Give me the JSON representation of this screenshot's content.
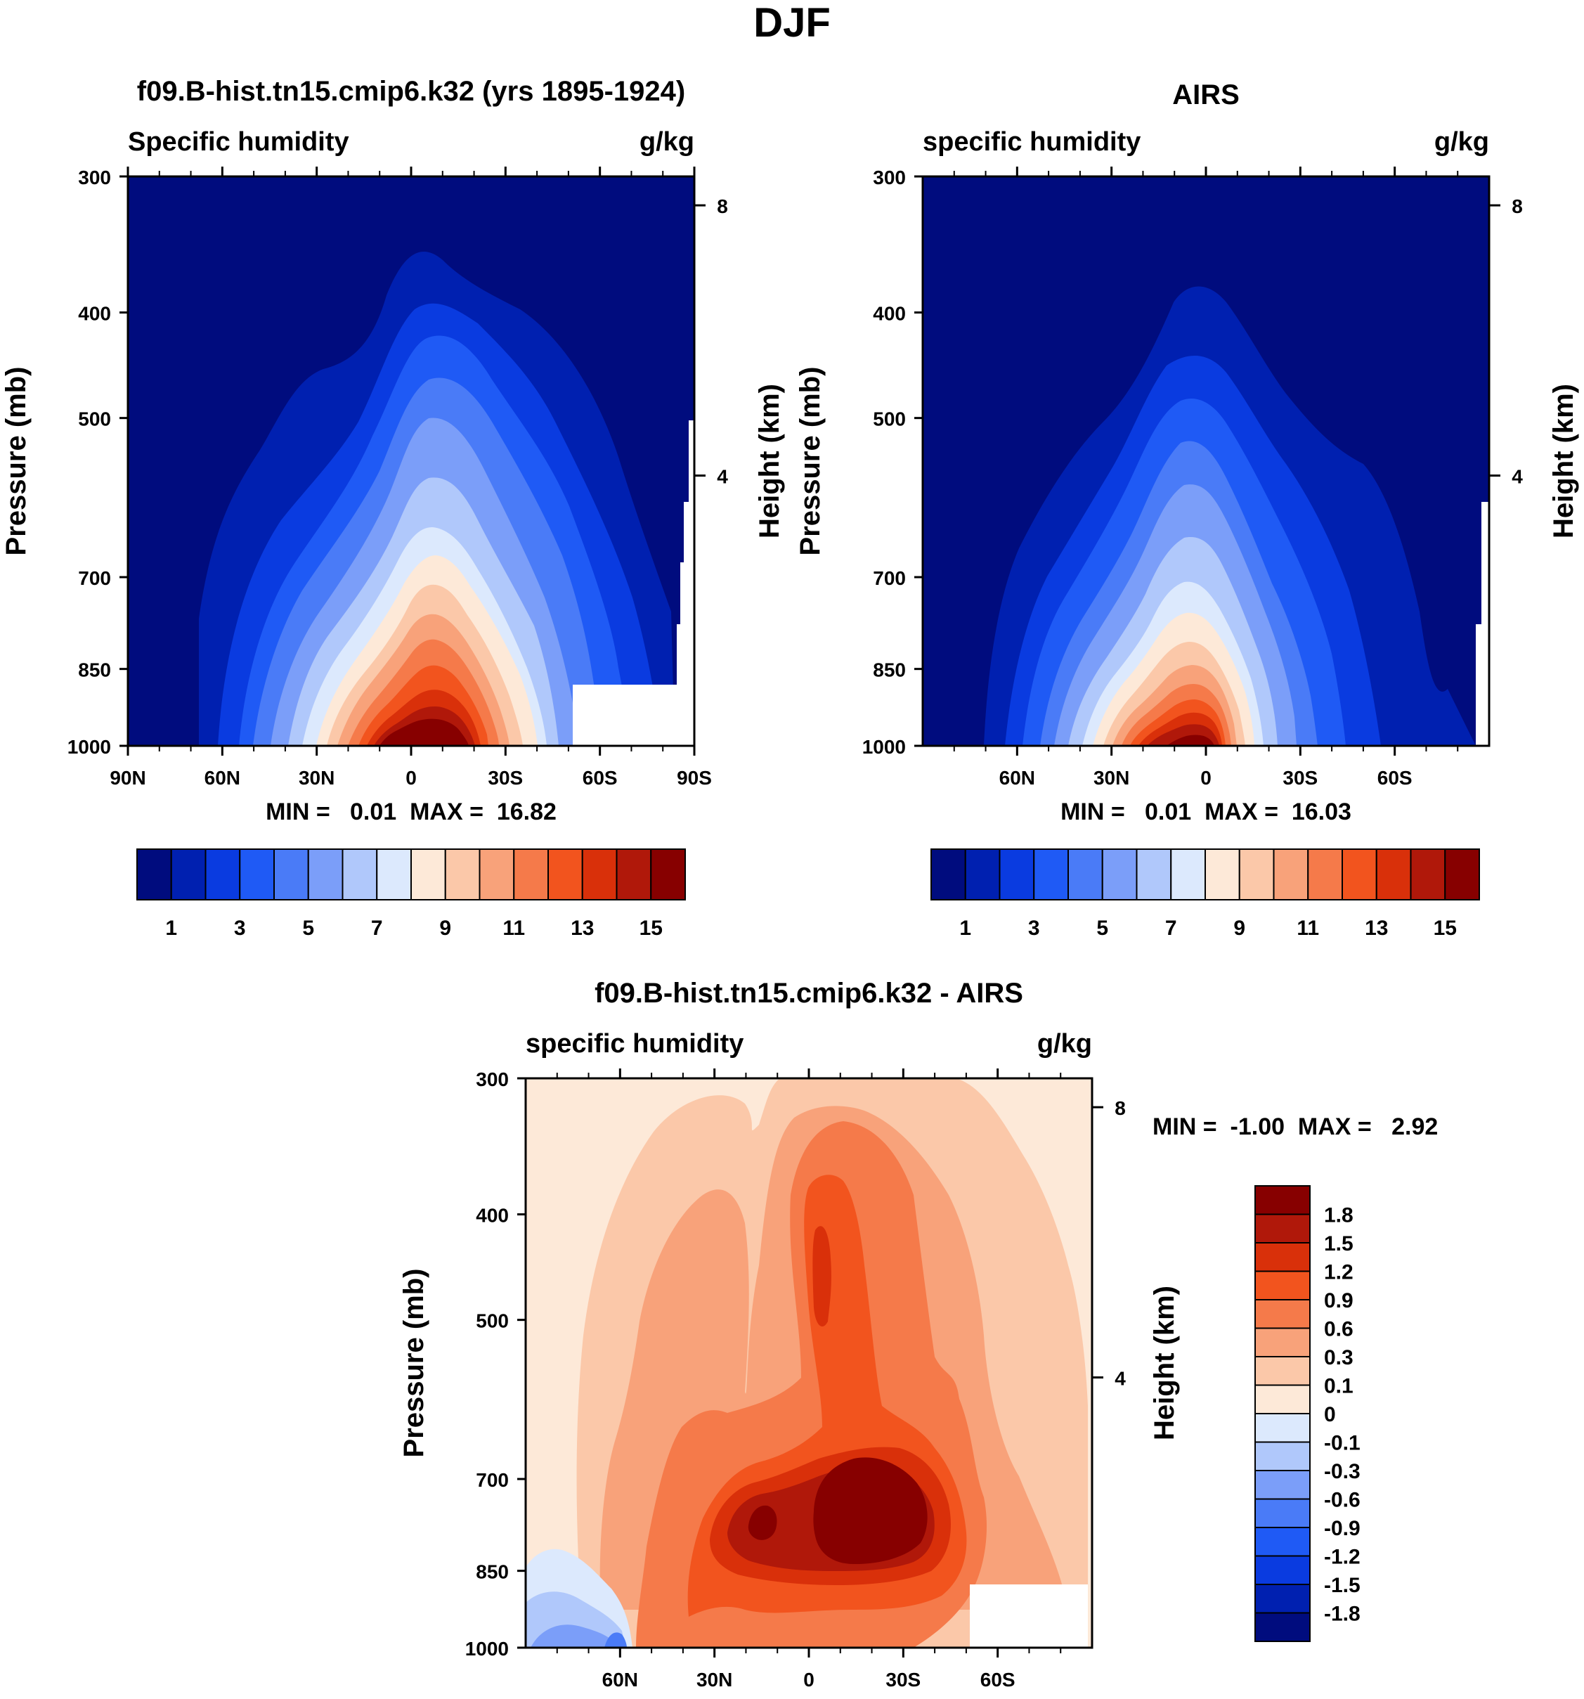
{
  "page_title": "DJF",
  "chart_data": [
    {
      "type": "heatmap",
      "id": "model",
      "title": "f09.B-hist.tn15.cmip6.k32 (yrs 1895-1924)",
      "left_label": "Specific humidity",
      "right_label": "g/kg",
      "ylabel": "Pressure (mb)",
      "ylabel_right": "Height (km)",
      "x_ticks": [
        "90N",
        "60N",
        "30N",
        "0",
        "30S",
        "60S",
        "90S"
      ],
      "xlim": [
        90,
        -90
      ],
      "y_ticks": [
        "300",
        "400",
        "500",
        "700",
        "850",
        "1000"
      ],
      "y_tick_values": [
        300,
        400,
        500,
        700,
        850,
        1000
      ],
      "ylim": [
        300,
        1000
      ],
      "height_ticks": [
        "8",
        "4"
      ],
      "min_max": "MIN =   0.01  MAX =  16.82",
      "min": 0.01,
      "max": 16.82,
      "colorbar_labels": [
        "1",
        "3",
        "5",
        "7",
        "9",
        "11",
        "13",
        "15"
      ]
    },
    {
      "type": "heatmap",
      "id": "obs",
      "title": "AIRS",
      "left_label": "specific humidity",
      "right_label": "g/kg",
      "ylabel": "Pressure (mb)",
      "ylabel_right": "Height (km)",
      "x_ticks": [
        "60N",
        "30N",
        "0",
        "30S",
        "60S"
      ],
      "xlim": [
        90,
        -90
      ],
      "y_ticks": [
        "300",
        "400",
        "500",
        "700",
        "850",
        "1000"
      ],
      "y_tick_values": [
        300,
        400,
        500,
        700,
        850,
        1000
      ],
      "ylim": [
        300,
        1000
      ],
      "height_ticks": [
        "8",
        "4"
      ],
      "min_max": "MIN =   0.01  MAX =  16.03",
      "min": 0.01,
      "max": 16.03,
      "colorbar_labels": [
        "1",
        "3",
        "5",
        "7",
        "9",
        "11",
        "13",
        "15"
      ]
    },
    {
      "type": "heatmap",
      "id": "diff",
      "title": "f09.B-hist.tn15.cmip6.k32 - AIRS",
      "left_label": "specific humidity",
      "right_label": "g/kg",
      "ylabel": "Pressure (mb)",
      "ylabel_right": "Height (km)",
      "x_ticks": [
        "60N",
        "30N",
        "0",
        "30S",
        "60S"
      ],
      "xlim": [
        90,
        -90
      ],
      "y_ticks": [
        "300",
        "400",
        "500",
        "700",
        "850",
        "1000"
      ],
      "y_tick_values": [
        300,
        400,
        500,
        700,
        850,
        1000
      ],
      "ylim": [
        300,
        1000
      ],
      "height_ticks": [
        "8",
        "4"
      ],
      "min_max": "MIN =  -1.00  MAX =   2.92",
      "min": -1.0,
      "max": 2.92,
      "colorbar_labels": [
        "1.8",
        "1.5",
        "1.2",
        "0.9",
        "0.6",
        "0.3",
        "0.1",
        "0",
        "-0.1",
        "-0.3",
        "-0.6",
        "-0.9",
        "-1.2",
        "-1.5",
        "-1.8"
      ]
    }
  ],
  "colors": {
    "abs_scale": [
      "#000c7e",
      "#0020b0",
      "#0a3be0",
      "#1f5af5",
      "#4a7bf7",
      "#7b9ef9",
      "#b0c8fb",
      "#dce9fd",
      "#fde9d8",
      "#fbc8a9",
      "#f8a27a",
      "#f57a4a",
      "#f2541e",
      "#d9300a",
      "#b0180a",
      "#870000"
    ],
    "diff_scale_top_to_bottom": [
      "#870000",
      "#b0180a",
      "#d9300a",
      "#f2541e",
      "#f57a4a",
      "#f8a27a",
      "#fbc8a9",
      "#fde9d8",
      "#dce9fd",
      "#b0c8fb",
      "#7b9ef9",
      "#4a7bf7",
      "#1f5af5",
      "#0a3be0",
      "#0020b0",
      "#000c7e"
    ],
    "missing": "#ffffff"
  }
}
